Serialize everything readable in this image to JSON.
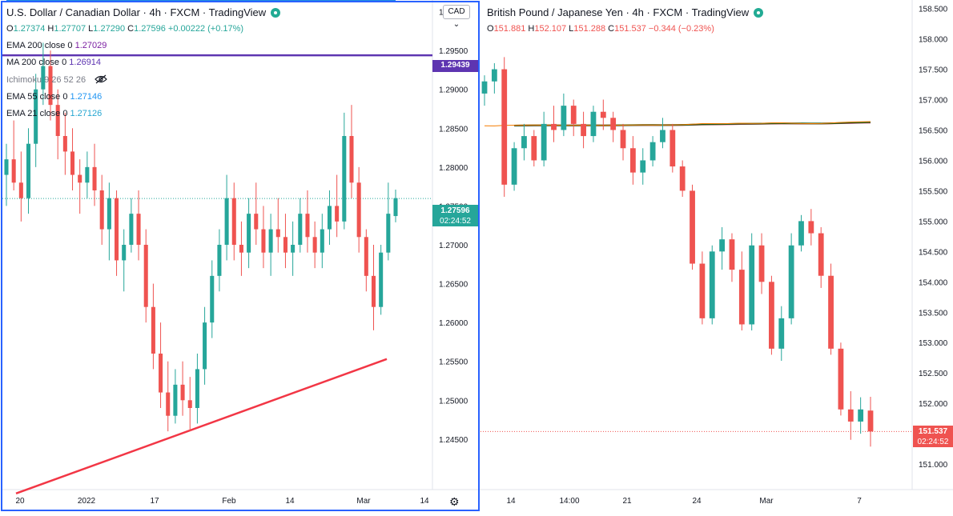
{
  "left_chart": {
    "title": "U.S. Dollar / Canadian Dollar · 4h · FXCM · TradingView",
    "ohlc": {
      "o_label": "O",
      "o": "1.27374",
      "h_label": "H",
      "h": "1.27707",
      "l_label": "L",
      "l": "1.27290",
      "c_label": "C",
      "c": "1.27596",
      "change": "+0.00222 (+0.17%)"
    },
    "indicators": [
      {
        "label": "EMA 200 close 0",
        "value": "1.27029",
        "color": "#7b1fa2"
      },
      {
        "label": "MA 200 close 0",
        "value": "1.26914",
        "color": "#5e35b1"
      },
      {
        "label": "Ichimoku 9 26 52 26",
        "value": "",
        "color": "#787b86"
      },
      {
        "label": "EMA 55 close 0",
        "value": "1.27146",
        "color": "#2196f3"
      },
      {
        "label": "EMA 21 close 0",
        "value": "1.27126",
        "color": "#26a6d1"
      }
    ],
    "currency_button": "CAD",
    "horizontal_level_label": "1.29439",
    "last_price_label": "1.27596",
    "countdown": "02:24:52",
    "accent_purple": "#5e35b1",
    "accent_green": "#26a69a"
  },
  "right_chart": {
    "title": "British Pound / Japanese Yen · 4h · FXCM · TradingView",
    "ohlc": {
      "o_label": "O",
      "o": "151.881",
      "h_label": "H",
      "h": "152.107",
      "l_label": "L",
      "l": "151.288",
      "c_label": "C",
      "c": "151.537",
      "change": "−0.344 (−0.23%)"
    },
    "last_price_label": "151.537",
    "countdown": "02:24:52",
    "accent_red": "#ef5350"
  },
  "chart_data": [
    {
      "type": "candlestick",
      "title": "U.S. Dollar / Canadian Dollar · 4h · FXCM · TradingView",
      "y_ticks": [
        "1.30000",
        "1.29500",
        "1.29000",
        "1.28500",
        "1.28000",
        "1.27500",
        "1.27000",
        "1.26500",
        "1.26000",
        "1.25500",
        "1.25000",
        "1.24500"
      ],
      "y_values": [
        1.3,
        1.295,
        1.29,
        1.285,
        1.28,
        1.275,
        1.27,
        1.265,
        1.26,
        1.255,
        1.25,
        1.245
      ],
      "ylim": [
        1.2385,
        1.3015
      ],
      "x_ticks": [
        "20",
        "2022",
        "17",
        "Feb",
        "14",
        "Mar",
        "14"
      ],
      "candles": [
        [
          1.279,
          1.283,
          1.275,
          1.281
        ],
        [
          1.281,
          1.286,
          1.277,
          1.278
        ],
        [
          1.278,
          1.282,
          1.273,
          1.276
        ],
        [
          1.276,
          1.285,
          1.274,
          1.283
        ],
        [
          1.283,
          1.292,
          1.28,
          1.29
        ],
        [
          1.29,
          1.296,
          1.288,
          1.293
        ],
        [
          1.293,
          1.295,
          1.286,
          1.288
        ],
        [
          1.288,
          1.29,
          1.281,
          1.284
        ],
        [
          1.284,
          1.287,
          1.279,
          1.282
        ],
        [
          1.282,
          1.285,
          1.277,
          1.279
        ],
        [
          1.279,
          1.281,
          1.274,
          1.278
        ],
        [
          1.278,
          1.282,
          1.276,
          1.28
        ],
        [
          1.28,
          1.283,
          1.275,
          1.277
        ],
        [
          1.277,
          1.279,
          1.27,
          1.272
        ],
        [
          1.272,
          1.278,
          1.268,
          1.276
        ],
        [
          1.276,
          1.277,
          1.266,
          1.268
        ],
        [
          1.268,
          1.272,
          1.264,
          1.27
        ],
        [
          1.27,
          1.276,
          1.269,
          1.274
        ],
        [
          1.274,
          1.277,
          1.268,
          1.27
        ],
        [
          1.27,
          1.272,
          1.26,
          1.262
        ],
        [
          1.262,
          1.265,
          1.254,
          1.256
        ],
        [
          1.256,
          1.26,
          1.249,
          1.251
        ],
        [
          1.251,
          1.255,
          1.246,
          1.248
        ],
        [
          1.248,
          1.254,
          1.247,
          1.252
        ],
        [
          1.252,
          1.255,
          1.248,
          1.25
        ],
        [
          1.25,
          1.253,
          1.246,
          1.249
        ],
        [
          1.249,
          1.256,
          1.247,
          1.254
        ],
        [
          1.254,
          1.262,
          1.252,
          1.26
        ],
        [
          1.26,
          1.268,
          1.258,
          1.266
        ],
        [
          1.266,
          1.272,
          1.264,
          1.27
        ],
        [
          1.27,
          1.279,
          1.268,
          1.276
        ],
        [
          1.276,
          1.278,
          1.268,
          1.27
        ],
        [
          1.27,
          1.273,
          1.266,
          1.269
        ],
        [
          1.269,
          1.276,
          1.267,
          1.274
        ],
        [
          1.274,
          1.278,
          1.27,
          1.272
        ],
        [
          1.272,
          1.275,
          1.267,
          1.269
        ],
        [
          1.269,
          1.274,
          1.266,
          1.272
        ],
        [
          1.272,
          1.276,
          1.269,
          1.271
        ],
        [
          1.271,
          1.274,
          1.267,
          1.269
        ],
        [
          1.269,
          1.273,
          1.266,
          1.27
        ],
        [
          1.27,
          1.276,
          1.269,
          1.274
        ],
        [
          1.274,
          1.277,
          1.269,
          1.271
        ],
        [
          1.271,
          1.273,
          1.267,
          1.269
        ],
        [
          1.269,
          1.274,
          1.267,
          1.272
        ],
        [
          1.272,
          1.277,
          1.27,
          1.275
        ],
        [
          1.275,
          1.279,
          1.271,
          1.273
        ],
        [
          1.273,
          1.287,
          1.272,
          1.284
        ],
        [
          1.284,
          1.288,
          1.276,
          1.278
        ],
        [
          1.278,
          1.28,
          1.269,
          1.271
        ],
        [
          1.271,
          1.272,
          1.264,
          1.266
        ],
        [
          1.266,
          1.27,
          1.259,
          1.262
        ],
        [
          1.262,
          1.27,
          1.261,
          1.269
        ],
        [
          1.269,
          1.278,
          1.268,
          1.274
        ],
        [
          1.2737,
          1.2771,
          1.2729,
          1.276
        ]
      ],
      "series": [
        {
          "name": "EMA 200 close 0",
          "color": "#7b1fa2"
        },
        {
          "name": "MA 200 close 0",
          "color": "#5e35b1"
        },
        {
          "name": "EMA 55 close 0",
          "color": "#2196f3"
        },
        {
          "name": "EMA 21 close 0",
          "color": "#26a6d1"
        }
      ],
      "horizontal_level": 1.29439,
      "trendline": [
        [
          0,
          1.238
        ],
        [
          1,
          1.2553
        ]
      ],
      "last_price": 1.27596
    },
    {
      "type": "candlestick",
      "title": "British Pound / Japanese Yen · 4h · FXCM · TradingView",
      "y_ticks": [
        "158.500",
        "158.000",
        "157.500",
        "157.000",
        "156.500",
        "156.000",
        "155.500",
        "155.000",
        "154.500",
        "154.000",
        "153.500",
        "153.000",
        "152.500",
        "152.000",
        "151.500",
        "151.000"
      ],
      "y_values": [
        158.5,
        158.0,
        157.5,
        157.0,
        156.5,
        156.0,
        155.5,
        155.0,
        154.5,
        154.0,
        153.5,
        153.0,
        152.5,
        152.0,
        151.5,
        151.0
      ],
      "ylim": [
        150.58,
        158.64
      ],
      "x_ticks": [
        "14",
        "14:00",
        "21",
        "24",
        "Mar",
        "7"
      ],
      "candles": [
        [
          157.1,
          157.4,
          156.9,
          157.3
        ],
        [
          157.3,
          157.6,
          157.1,
          157.5
        ],
        [
          157.5,
          157.7,
          155.4,
          155.6
        ],
        [
          155.6,
          156.3,
          155.5,
          156.2
        ],
        [
          156.2,
          156.6,
          156.0,
          156.4
        ],
        [
          156.4,
          156.5,
          155.9,
          156.0
        ],
        [
          156.0,
          156.8,
          155.9,
          156.6
        ],
        [
          156.6,
          156.9,
          156.3,
          156.5
        ],
        [
          156.5,
          157.1,
          156.4,
          156.9
        ],
        [
          156.9,
          157.0,
          156.4,
          156.6
        ],
        [
          156.6,
          156.8,
          156.2,
          156.4
        ],
        [
          156.4,
          156.9,
          156.3,
          156.8
        ],
        [
          156.8,
          157.0,
          156.5,
          156.7
        ],
        [
          156.7,
          156.8,
          156.3,
          156.5
        ],
        [
          156.5,
          156.6,
          156.0,
          156.2
        ],
        [
          156.2,
          156.4,
          155.6,
          155.8
        ],
        [
          155.8,
          156.2,
          155.6,
          156.0
        ],
        [
          156.0,
          156.4,
          155.9,
          156.3
        ],
        [
          156.3,
          156.7,
          156.2,
          156.5
        ],
        [
          156.5,
          156.6,
          155.8,
          155.9
        ],
        [
          155.9,
          156.0,
          155.4,
          155.5
        ],
        [
          155.5,
          155.6,
          154.2,
          154.3
        ],
        [
          154.3,
          154.5,
          153.3,
          153.4
        ],
        [
          153.4,
          154.6,
          153.3,
          154.5
        ],
        [
          154.5,
          154.9,
          154.2,
          154.7
        ],
        [
          154.7,
          154.8,
          154.0,
          154.2
        ],
        [
          154.2,
          154.5,
          153.2,
          153.3
        ],
        [
          153.3,
          154.8,
          153.2,
          154.6
        ],
        [
          154.6,
          154.8,
          153.8,
          154.0
        ],
        [
          154.0,
          154.1,
          152.8,
          152.9
        ],
        [
          152.9,
          153.6,
          152.7,
          153.4
        ],
        [
          153.4,
          154.8,
          153.3,
          154.6
        ],
        [
          154.6,
          155.1,
          154.5,
          155.0
        ],
        [
          155.0,
          155.2,
          154.6,
          154.8
        ],
        [
          154.8,
          154.9,
          153.9,
          154.1
        ],
        [
          154.1,
          154.3,
          152.8,
          152.9
        ],
        [
          152.9,
          153.0,
          151.8,
          151.9
        ],
        [
          151.9,
          152.2,
          151.4,
          151.7
        ],
        [
          151.7,
          152.1,
          151.5,
          151.9
        ],
        [
          151.881,
          152.107,
          151.288,
          151.537
        ]
      ],
      "series": [
        {
          "name": "",
          "color": "#1b5e20"
        },
        {
          "name": "",
          "color": "#e91e63"
        },
        {
          "name": "",
          "color": "#f57c00"
        }
      ],
      "last_price": 151.537
    }
  ]
}
